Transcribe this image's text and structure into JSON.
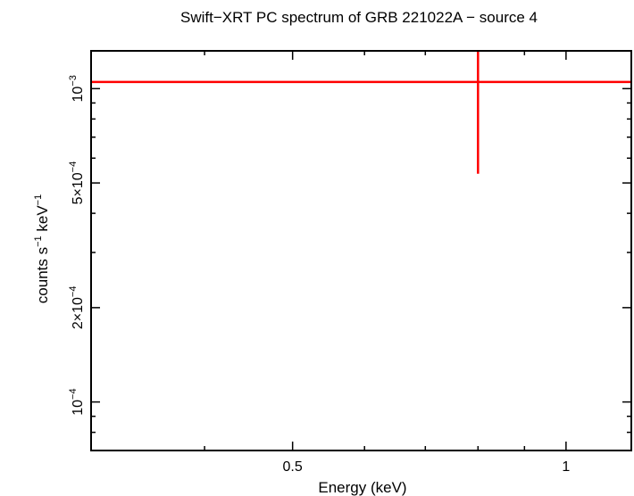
{
  "chart_data": {
    "type": "scatter",
    "title": "Swift−XRT PC spectrum of GRB 221022A − source 4",
    "xlabel": "Energy (keV)",
    "ylabel_main": "counts s",
    "ylabel_exp1": "−1",
    "ylabel_mid": " keV",
    "ylabel_exp2": "−1",
    "x_scale": "log",
    "y_scale": "log",
    "xlim": [
      0.3,
      1.18
    ],
    "ylim": [
      7e-05,
      0.00132
    ],
    "x_ticks": [
      {
        "value": 0.5,
        "label": "0.5"
      },
      {
        "value": 1,
        "label": "1"
      }
    ],
    "y_ticks": [
      {
        "value": 0.001,
        "mant": "",
        "base": "10",
        "exp": "−3"
      },
      {
        "value": 0.0005,
        "mant": "5×",
        "base": "10",
        "exp": "−4"
      },
      {
        "value": 0.0002,
        "mant": "2×",
        "base": "10",
        "exp": "−4"
      },
      {
        "value": 0.0001,
        "mant": "",
        "base": "10",
        "exp": "−4"
      }
    ],
    "grid": false,
    "series": [
      {
        "color": "#ff0000",
        "points": [
          {
            "x": 0.8,
            "y": 0.00105,
            "x_err": [
              0.3,
              1.18
            ],
            "y_err": [
              0.000535,
              0.00132
            ]
          }
        ]
      }
    ]
  }
}
